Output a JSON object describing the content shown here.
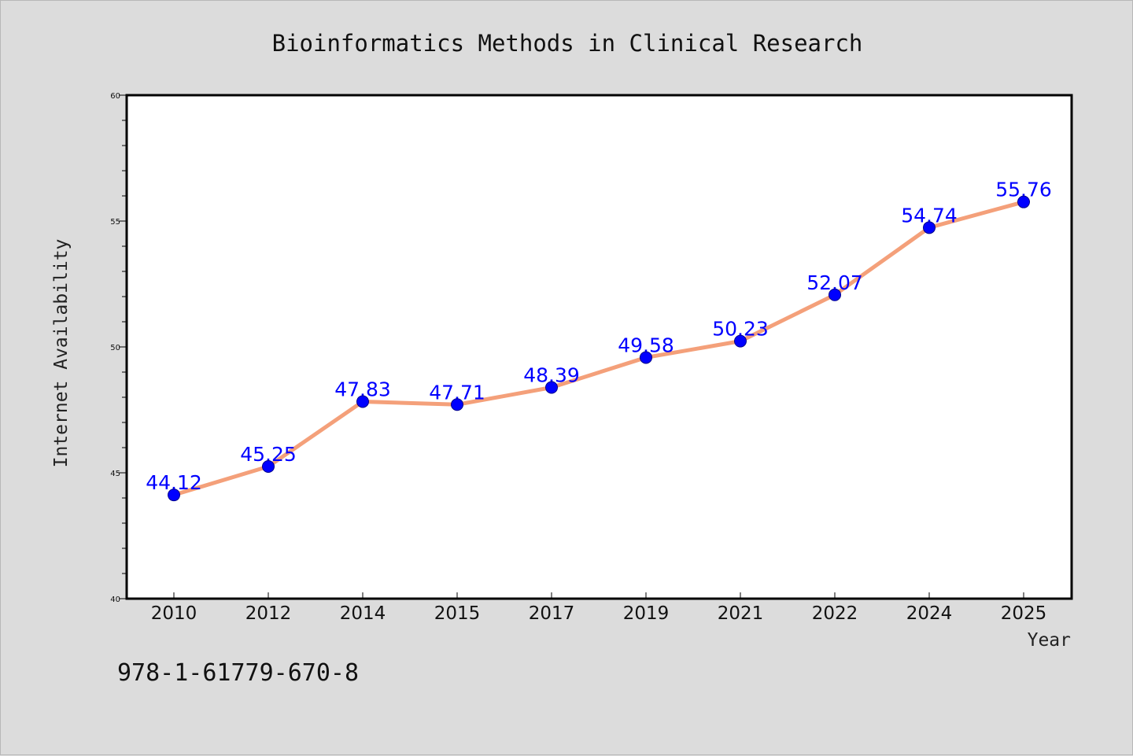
{
  "chart_data": {
    "type": "line",
    "title": "Bioinformatics Methods in Clinical Research",
    "xlabel": "Year",
    "ylabel": "Internet Availability",
    "categories": [
      "2010",
      "2012",
      "2014",
      "2015",
      "2017",
      "2019",
      "2021",
      "2022",
      "2024",
      "2025"
    ],
    "series": [
      {
        "values": [
          44.12,
          45.25,
          47.83,
          47.71,
          48.39,
          49.58,
          50.23,
          52.07,
          54.74,
          55.76
        ],
        "data_labels": [
          "44.12",
          "45.25",
          "47.83",
          "47.71",
          "48.39",
          "49.58",
          "50.23",
          "52.07",
          "54.74",
          "55.76"
        ],
        "line_color": "#f4a07a",
        "marker_color": "#0000ff"
      }
    ],
    "ylim": [
      40,
      60
    ],
    "yticks": [
      40,
      45,
      50,
      55,
      60
    ],
    "ytick_labels": [
      "40",
      "45",
      "50",
      "55",
      "60"
    ],
    "grid": false,
    "data_label_color": "#0000ff"
  },
  "footer": {
    "isbn": "978-1-61779-670-8"
  },
  "colors": {
    "background": "#dcdcdc",
    "plot_background": "#ffffff",
    "axes": "#000000"
  }
}
